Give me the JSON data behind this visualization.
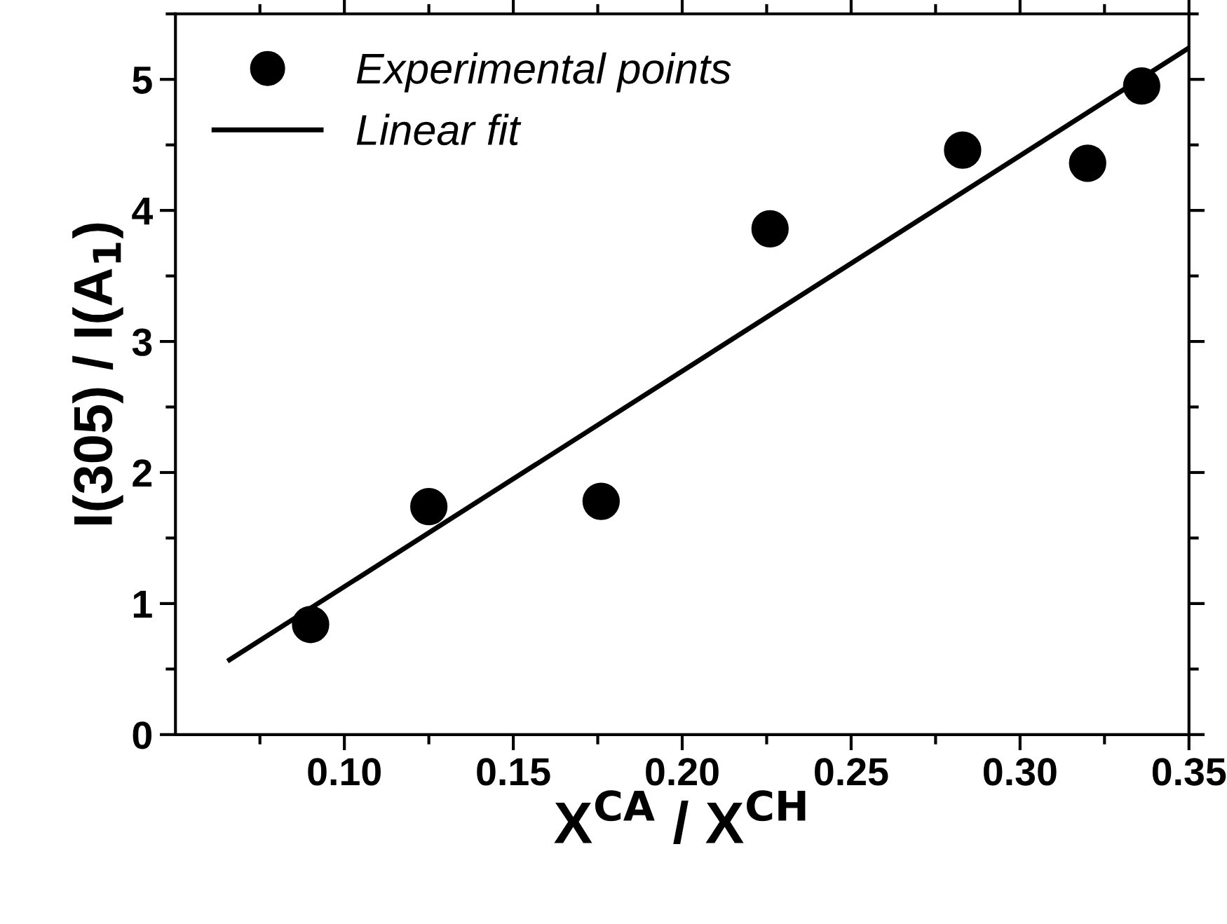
{
  "chart_data": {
    "type": "scatter",
    "xlabel": "X$^{CA}$ / X$^{CH}$",
    "ylabel": "I(305) / I(A$_{1}$)",
    "series": [
      {
        "name": "Experimental points",
        "color": "#000000",
        "marker": "circle",
        "x": [
          0.09,
          0.125,
          0.176,
          0.226,
          0.283,
          0.32,
          0.336
        ],
        "values": [
          0.84,
          1.74,
          1.78,
          3.86,
          4.46,
          4.36,
          4.95
        ]
      },
      {
        "name": "Linear fit",
        "type": "line",
        "color": "#000000",
        "marker": "none",
        "line_style": "solid",
        "x": [
          0.066,
          0.35
        ],
        "values": [
          0.57,
          5.24
        ]
      }
    ],
    "xlim": [
      0.05,
      0.35
    ],
    "ylim": [
      0,
      5.5
    ],
    "xticks": [
      {
        "value": 0.1,
        "label": "0.10"
      },
      0.15,
      {
        "value": 0.2,
        "label": "0.20"
      },
      0.25,
      {
        "value": 0.3,
        "label": "0.30"
      },
      0.35
    ],
    "yticks": [
      0,
      1,
      2,
      3,
      4,
      5
    ],
    "grid": false,
    "legend": "top left"
  }
}
